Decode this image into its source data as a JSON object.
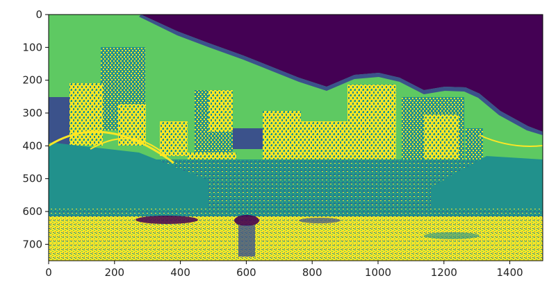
{
  "chart_data": {
    "type": "heatmap",
    "title": "",
    "xlabel": "",
    "ylabel": "",
    "xlim": [
      0,
      1500
    ],
    "ylim": [
      750,
      0
    ],
    "x_ticks": [
      0,
      200,
      400,
      600,
      800,
      1000,
      1200,
      1400
    ],
    "y_ticks": [
      0,
      100,
      200,
      300,
      400,
      500,
      600,
      700
    ],
    "x_tick_labels": [
      "0",
      "200",
      "400",
      "600",
      "800",
      "1000",
      "1200",
      "1400"
    ],
    "y_tick_labels": [
      "0",
      "100",
      "200",
      "300",
      "400",
      "500",
      "600",
      "700"
    ],
    "colormap": "viridis",
    "colors": {
      "dark_purple": "#440154",
      "blue": "#3b528b",
      "teal": "#21918c",
      "green": "#5ec962",
      "yellow": "#fde725"
    },
    "image_description_regions": {
      "sky": "green",
      "upper_right_sky": "dark_purple",
      "buildings": "yellow/teal",
      "bridges": "teal",
      "river": "yellow/teal"
    }
  }
}
